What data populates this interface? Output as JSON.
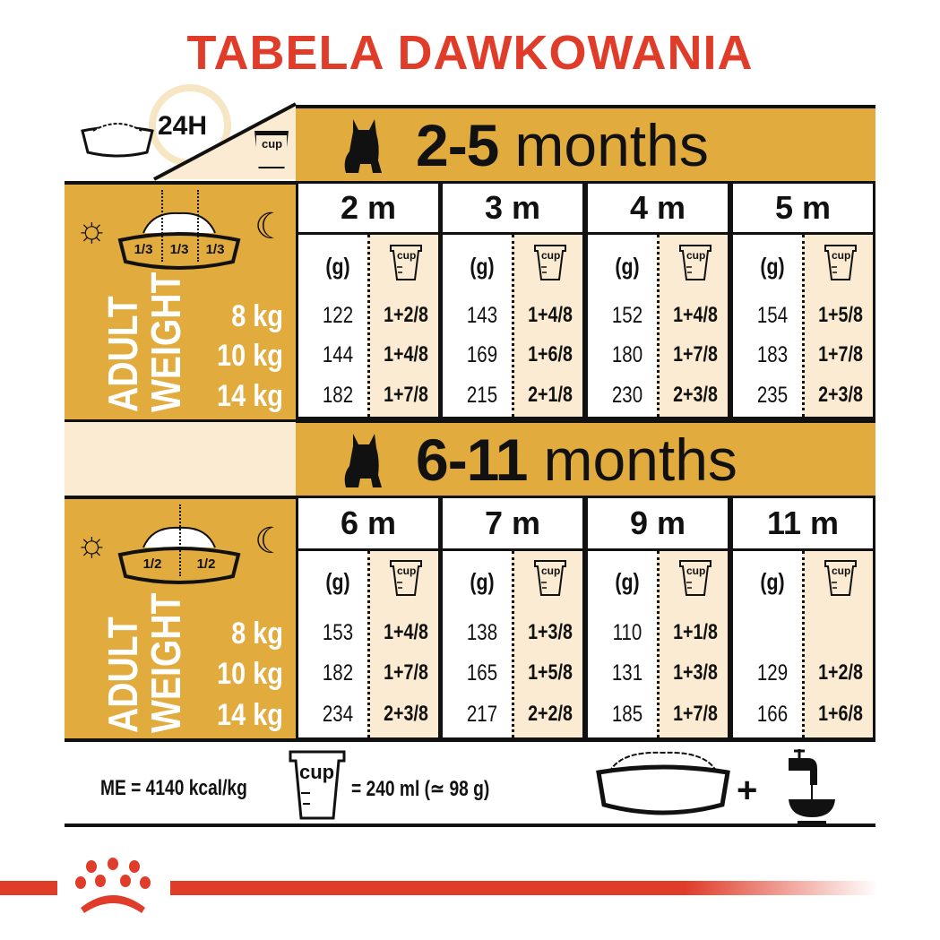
{
  "title": "TABELA DAWKOWANIA",
  "top_left": {
    "duration_label": "24H",
    "cup_label": "cup"
  },
  "colors": {
    "title": "#e03c2a",
    "gold": "#e1ab3d",
    "cream": "#faebd2",
    "logo": "#e03c2a"
  },
  "icons": [
    "bowl-icon",
    "clock-icon",
    "cup-icon",
    "dog-silhouette-icon",
    "sun-icon",
    "moon-icon",
    "water-tap-icon",
    "plus-icon",
    "royal-canin-crown-logo"
  ],
  "sections": [
    {
      "band": {
        "range": "2-5",
        "unit": "months"
      },
      "portions": [
        "1/3",
        "1/3",
        "1/3"
      ],
      "weight_label": [
        "ADULT",
        "WEIGHT"
      ],
      "weights": [
        "8 kg",
        "10 kg",
        "14 kg"
      ],
      "col_headers": {
        "grams": "(g)",
        "cup": "cup"
      },
      "months": [
        {
          "label": "2 m",
          "rows": [
            [
              "122",
              "1+2/8"
            ],
            [
              "144",
              "1+4/8"
            ],
            [
              "182",
              "1+7/8"
            ]
          ]
        },
        {
          "label": "3 m",
          "rows": [
            [
              "143",
              "1+4/8"
            ],
            [
              "169",
              "1+6/8"
            ],
            [
              "215",
              "2+1/8"
            ]
          ]
        },
        {
          "label": "4 m",
          "rows": [
            [
              "152",
              "1+4/8"
            ],
            [
              "180",
              "1+7/8"
            ],
            [
              "230",
              "2+3/8"
            ]
          ]
        },
        {
          "label": "5 m",
          "rows": [
            [
              "154",
              "1+5/8"
            ],
            [
              "183",
              "1+7/8"
            ],
            [
              "235",
              "2+3/8"
            ]
          ]
        }
      ]
    },
    {
      "band": {
        "range": "6-11",
        "unit": "months"
      },
      "portions": [
        "1/2",
        "1/2"
      ],
      "weight_label": [
        "ADULT",
        "WEIGHT"
      ],
      "weights": [
        "8 kg",
        "10 kg",
        "14 kg"
      ],
      "col_headers": {
        "grams": "(g)",
        "cup": "cup"
      },
      "months": [
        {
          "label": "6 m",
          "rows": [
            [
              "153",
              "1+4/8"
            ],
            [
              "182",
              "1+7/8"
            ],
            [
              "234",
              "2+3/8"
            ]
          ]
        },
        {
          "label": "7 m",
          "rows": [
            [
              "138",
              "1+3/8"
            ],
            [
              "165",
              "1+5/8"
            ],
            [
              "217",
              "2+2/8"
            ]
          ]
        },
        {
          "label": "9 m",
          "rows": [
            [
              "110",
              "1+1/8"
            ],
            [
              "131",
              "1+3/8"
            ],
            [
              "185",
              "1+7/8"
            ]
          ]
        },
        {
          "label": "11 m",
          "rows": [
            [
              "",
              ""
            ],
            [
              "129",
              "1+2/8"
            ],
            [
              "166",
              "1+6/8"
            ]
          ]
        }
      ]
    }
  ],
  "footer": {
    "energy": "ME = 4140 kcal/kg",
    "cup_label": "cup",
    "cup_equivalence": "= 240 ml (≃ 98 g)"
  }
}
